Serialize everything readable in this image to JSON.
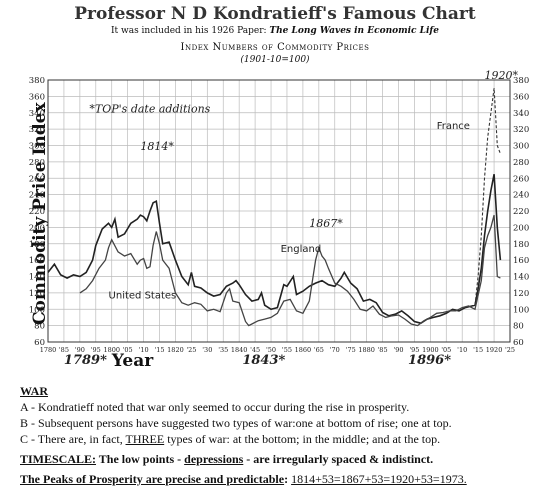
{
  "header": {
    "title": "Professor N D Kondratieff's Famous Chart",
    "subtitle_prefix": "It was included in his 1926 Paper:",
    "subtitle_paper": "The Long Waves in Economic Life",
    "chart_title": "Index Numbers of Commodity Prices",
    "chart_subtitle": "(1901-10=100)"
  },
  "chart_data": {
    "type": "line",
    "title": "Index Numbers of Commodity Prices",
    "subtitle": "(1901-10=100)",
    "ylabel": "Commodity Price Index",
    "xlabel": "Year",
    "xlim": [
      1780,
      1925
    ],
    "ylim": [
      60,
      380
    ],
    "y_ticks": [
      60,
      80,
      100,
      120,
      140,
      160,
      180,
      200,
      220,
      240,
      260,
      280,
      300,
      320,
      340,
      360,
      380
    ],
    "y_tick_labels": [
      "60",
      "80",
      "100",
      "120",
      "140",
      "160",
      "180",
      "200",
      "220",
      "240",
      "260",
      "280",
      "300",
      "320",
      "340",
      "360",
      "380"
    ],
    "x_ticks": [
      1780,
      1785,
      1790,
      1795,
      1800,
      1805,
      1810,
      1815,
      1820,
      1825,
      1830,
      1835,
      1840,
      1845,
      1850,
      1855,
      1860,
      1865,
      1870,
      1875,
      1880,
      1885,
      1890,
      1895,
      1900,
      1905,
      1910,
      1915,
      1920,
      1925
    ],
    "x_tick_labels": [
      "1780",
      "'85",
      "'90",
      "'95",
      "1800",
      "'05",
      "'10",
      "'15",
      "1820",
      "'25",
      "'30",
      "'35",
      "1840",
      "'45",
      "'50",
      "'55",
      "1860",
      "'65",
      "'70",
      "'75",
      "1880",
      "'85",
      "'90",
      "'95",
      "1900",
      "'05",
      "'10",
      "'15",
      "1920",
      "'25"
    ],
    "grid": true,
    "series": [
      {
        "name": "England",
        "x": [
          1780,
          1782,
          1784,
          1786,
          1788,
          1790,
          1792,
          1794,
          1795,
          1797,
          1799,
          1800,
          1801,
          1802,
          1804,
          1806,
          1808,
          1809,
          1810,
          1811,
          1812,
          1813,
          1814,
          1815,
          1816,
          1818,
          1820,
          1822,
          1824,
          1825,
          1826,
          1828,
          1830,
          1832,
          1834,
          1836,
          1838,
          1839,
          1840,
          1842,
          1844,
          1846,
          1847,
          1848,
          1850,
          1852,
          1854,
          1855,
          1857,
          1858,
          1860,
          1862,
          1864,
          1866,
          1868,
          1870,
          1872,
          1873,
          1875,
          1877,
          1879,
          1881,
          1883,
          1885,
          1887,
          1889,
          1891,
          1893,
          1895,
          1897,
          1899,
          1901,
          1903,
          1905,
          1907,
          1909,
          1911,
          1913,
          1914,
          1915,
          1916,
          1917,
          1918,
          1919,
          1920,
          1921,
          1922
        ],
        "values": [
          145,
          155,
          142,
          138,
          142,
          140,
          145,
          160,
          178,
          198,
          205,
          200,
          210,
          188,
          192,
          205,
          210,
          215,
          213,
          208,
          220,
          230,
          232,
          205,
          180,
          182,
          160,
          140,
          130,
          145,
          128,
          126,
          120,
          116,
          118,
          128,
          132,
          135,
          130,
          118,
          110,
          112,
          120,
          105,
          100,
          102,
          130,
          128,
          140,
          118,
          122,
          128,
          132,
          135,
          130,
          128,
          138,
          145,
          132,
          125,
          110,
          112,
          108,
          96,
          92,
          94,
          98,
          92,
          85,
          83,
          88,
          90,
          92,
          95,
          100,
          98,
          102,
          104,
          105,
          125,
          150,
          190,
          220,
          245,
          265,
          200,
          160
        ]
      },
      {
        "name": "United States",
        "x": [
          1790,
          1792,
          1794,
          1796,
          1798,
          1799,
          1800,
          1802,
          1804,
          1806,
          1808,
          1809,
          1810,
          1811,
          1812,
          1813,
          1814,
          1815,
          1816,
          1818,
          1820,
          1822,
          1824,
          1826,
          1828,
          1830,
          1832,
          1834,
          1836,
          1837,
          1838,
          1840,
          1842,
          1843,
          1844,
          1846,
          1848,
          1850,
          1852,
          1854,
          1856,
          1858,
          1860,
          1862,
          1864,
          1865,
          1866,
          1867,
          1868,
          1870,
          1872,
          1874,
          1876,
          1878,
          1880,
          1882,
          1884,
          1886,
          1888,
          1890,
          1892,
          1894,
          1896,
          1898,
          1900,
          1902,
          1904,
          1906,
          1908,
          1910,
          1912,
          1914,
          1916,
          1917,
          1918,
          1919,
          1920,
          1921,
          1922
        ],
        "values": [
          120,
          125,
          135,
          150,
          160,
          175,
          185,
          170,
          165,
          168,
          155,
          160,
          162,
          150,
          152,
          178,
          195,
          180,
          160,
          150,
          120,
          108,
          105,
          108,
          106,
          98,
          100,
          97,
          120,
          125,
          110,
          108,
          85,
          80,
          82,
          86,
          88,
          90,
          95,
          110,
          112,
          98,
          95,
          110,
          160,
          175,
          165,
          160,
          150,
          132,
          128,
          122,
          112,
          100,
          98,
          104,
          94,
          90,
          92,
          93,
          88,
          82,
          80,
          86,
          90,
          95,
          96,
          98,
          98,
          102,
          104,
          100,
          135,
          175,
          190,
          200,
          215,
          140,
          138
        ]
      },
      {
        "name": "France",
        "x": [
          1914,
          1915,
          1916,
          1917,
          1918,
          1919,
          1920,
          1921,
          1922
        ],
        "values": [
          105,
          140,
          190,
          260,
          310,
          340,
          370,
          300,
          290
        ]
      }
    ],
    "series_labels": [
      "England",
      "United States",
      "France"
    ],
    "annotations": [
      {
        "text": "*TOP's date additions"
      },
      {
        "text": "1814*"
      },
      {
        "text": "1867*"
      },
      {
        "text": "1920*"
      },
      {
        "text": "1789*"
      },
      {
        "text": "1843*"
      },
      {
        "text": "1896*"
      }
    ]
  },
  "notes": {
    "war_heading": "WAR",
    "war_a": "A - Kondratieff noted that war only seemed to occur during the rise in prosperity.",
    "war_b": "B - Subsequent persons have suggested two types of war:one at bottom of rise; one at top.",
    "war_c_prefix": "C - There are, in fact, ",
    "war_c_three": "THREE",
    "war_c_suffix": " types of war: at the bottom; in the middle; and at the top.",
    "timescale_label": "TIMESCALE:",
    "timescale_text_1": " The low points - ",
    "timescale_depressions": "depressions",
    "timescale_text_2": " - are irregularly spaced & indistinct.",
    "peaks_label": "The Peaks of Prosperity are precise and predictable",
    "peaks_colon": ":",
    "peaks_equation": "1814+53=1867+53=1920+53=1973."
  }
}
